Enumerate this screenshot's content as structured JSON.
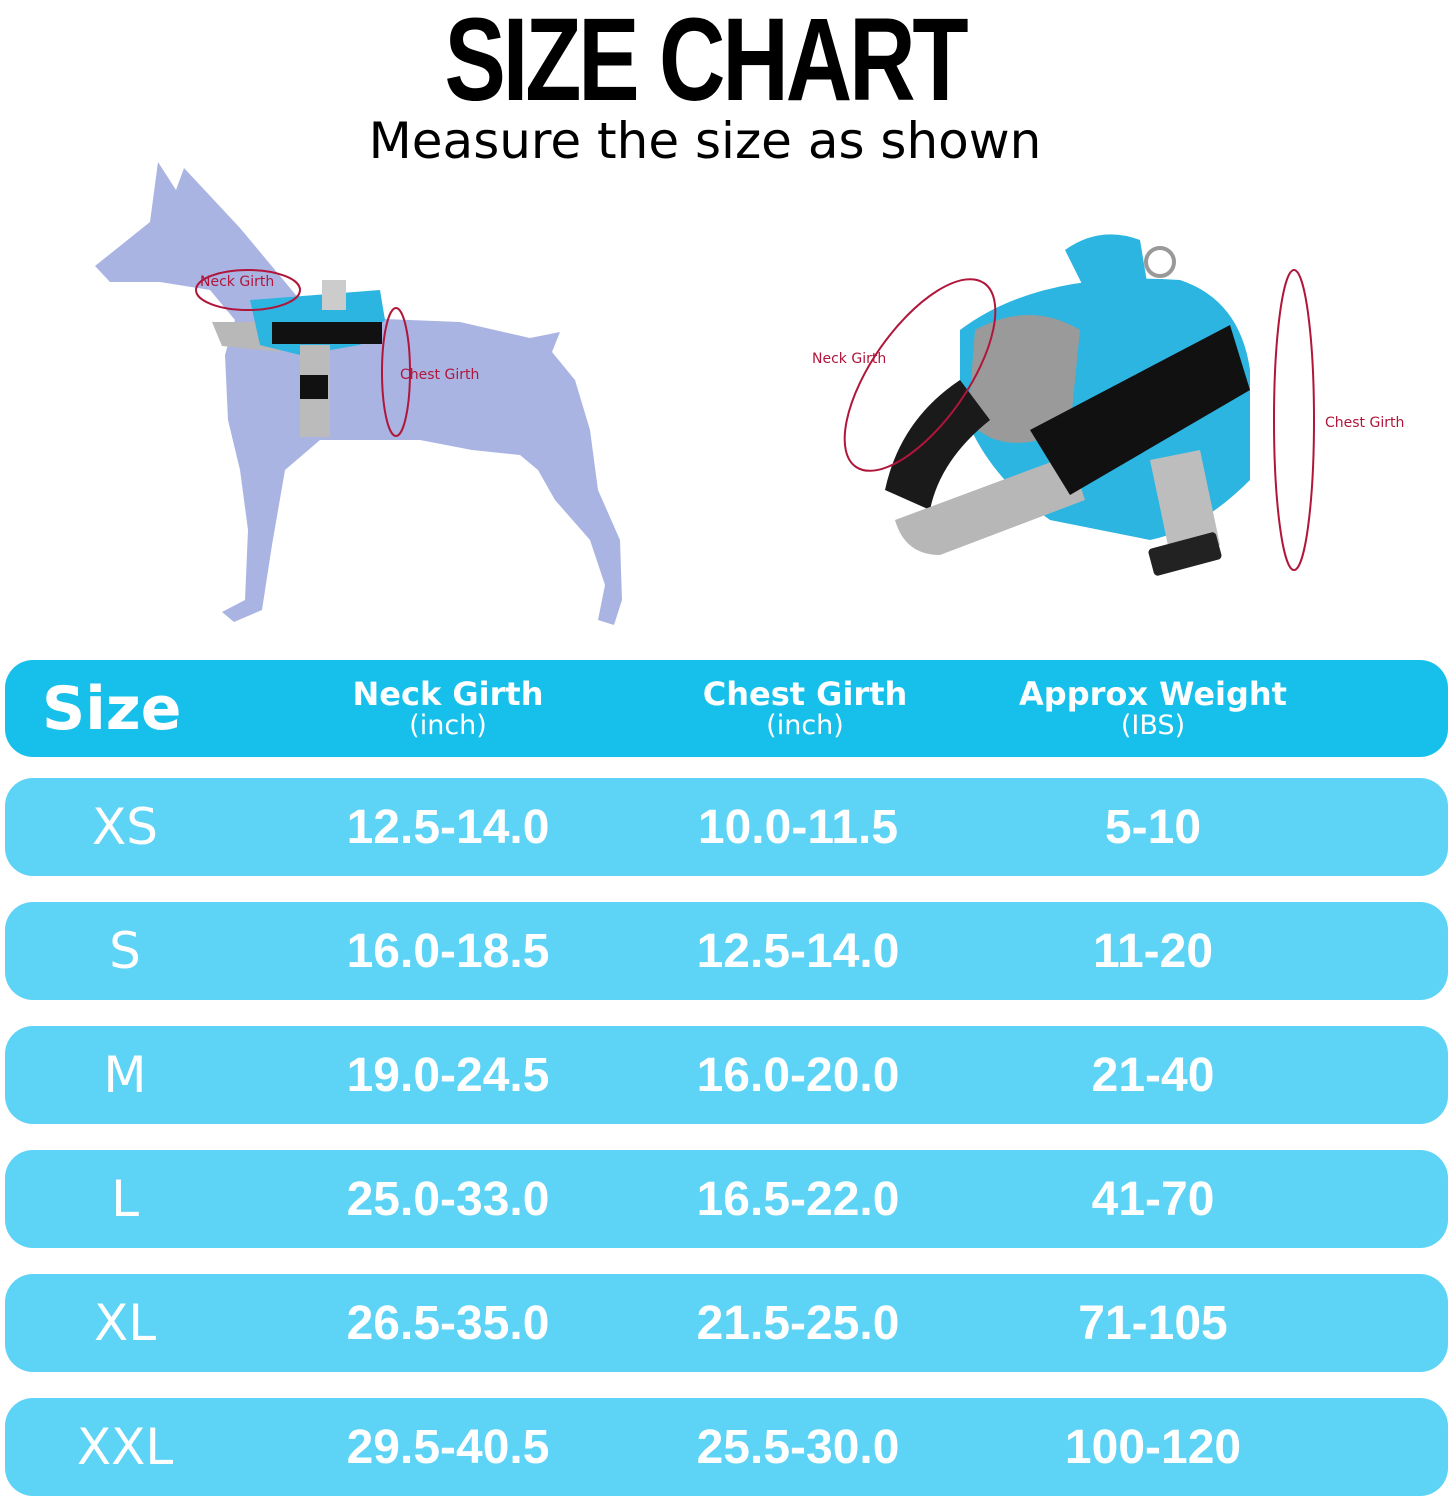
{
  "title": "SIZE CHART",
  "subtitle": "Measure the size as shown",
  "figures": {
    "dog_labels": {
      "neck": "Neck Girth",
      "chest": "Chest Girth"
    },
    "harness_labels": {
      "neck": "Neck Girth",
      "chest": "Chest Girth"
    }
  },
  "colors": {
    "header_bg": "#17c0ea",
    "row_bg": "#5dd3f5",
    "dog_silhouette": "#aab4e3",
    "measure_line": "#b0163a",
    "harness_blue": "#2bb5e0"
  },
  "table": {
    "headers": [
      {
        "main": "Size",
        "sub": ""
      },
      {
        "main": "Neck Girth",
        "sub": "(inch)"
      },
      {
        "main": "Chest Girth",
        "sub": "(inch)"
      },
      {
        "main": "Approx Weight",
        "sub": "(IBS)"
      }
    ],
    "rows": [
      {
        "size": "XS",
        "neck": "12.5-14.0",
        "chest": "10.0-11.5",
        "weight": "5-10"
      },
      {
        "size": "S",
        "neck": "16.0-18.5",
        "chest": "12.5-14.0",
        "weight": "11-20"
      },
      {
        "size": "M",
        "neck": "19.0-24.5",
        "chest": "16.0-20.0",
        "weight": "21-40"
      },
      {
        "size": "L",
        "neck": "25.0-33.0",
        "chest": "16.5-22.0",
        "weight": "41-70"
      },
      {
        "size": "XL",
        "neck": "26.5-35.0",
        "chest": "21.5-25.0",
        "weight": "71-105"
      },
      {
        "size": "XXL",
        "neck": "29.5-40.5",
        "chest": "25.5-30.0",
        "weight": "100-120"
      }
    ]
  }
}
